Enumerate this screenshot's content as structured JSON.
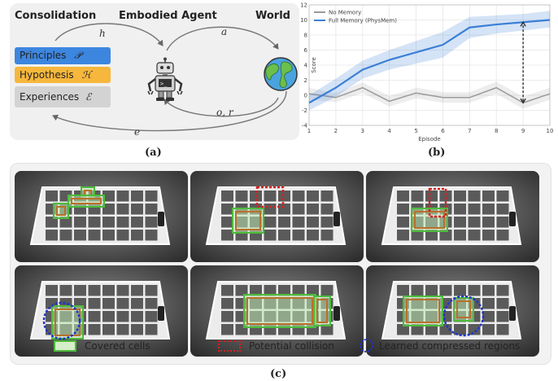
{
  "panel_a": {
    "headers": {
      "consolidation": "Consolidation",
      "agent": "Embodied Agent",
      "world": "World"
    },
    "memory": {
      "principles": "Principles",
      "principles_sym": "𝒫",
      "hypothesis": "Hypothesis",
      "hypothesis_sym": "ℋ",
      "experiences": "Experiences",
      "experiences_sym": "ℰ"
    },
    "edges": {
      "h": "h",
      "a": "a",
      "or": "o, r",
      "e": "e"
    },
    "colors": {
      "principles": "#3d86e0",
      "hypothesis": "#f6b73c",
      "experiences": "#d3d3d3"
    },
    "caption": "(a)"
  },
  "panel_b": {
    "caption": "(b)"
  },
  "panel_c": {
    "caption": "(c)",
    "legend": {
      "covered": "Covered cells",
      "collision": "Potential collision",
      "compressed": "Learned compressed regions"
    }
  },
  "chart_data": {
    "type": "line",
    "x": [
      1,
      2,
      3,
      4,
      5,
      6,
      7,
      8,
      9,
      10
    ],
    "series": [
      {
        "name": "No Memory",
        "color": "#9a9a9a",
        "values": [
          0.2,
          -0.3,
          1.0,
          -0.8,
          0.3,
          -0.3,
          -0.3,
          1.0,
          -1.0,
          0.2
        ],
        "band_low": [
          -0.6,
          -0.9,
          0.3,
          -1.5,
          -0.4,
          -1.0,
          -1.0,
          0.2,
          -1.8,
          -0.6
        ],
        "band_high": [
          1.0,
          0.3,
          1.7,
          -0.1,
          1.0,
          0.4,
          0.4,
          1.8,
          -0.2,
          1.0
        ]
      },
      {
        "name": "Full Memory (PhysMem)",
        "color": "#3a7fd6",
        "values": [
          -1.0,
          1.0,
          3.4,
          4.7,
          5.7,
          6.7,
          9.0,
          9.4,
          9.7,
          10.0
        ],
        "band_low": [
          -2.0,
          -0.2,
          2.2,
          3.4,
          4.2,
          5.0,
          7.6,
          8.2,
          8.6,
          9.0
        ],
        "band_high": [
          0.0,
          2.2,
          4.6,
          6.0,
          7.2,
          8.4,
          10.4,
          10.6,
          10.8,
          11.2
        ]
      }
    ],
    "xlabel": "Episode",
    "ylabel": "Score",
    "xlim": [
      1,
      10
    ],
    "ylim": [
      -4,
      12
    ],
    "xticks": [
      1,
      2,
      3,
      4,
      5,
      6,
      7,
      8,
      9,
      10
    ],
    "yticks": [
      -4,
      -2,
      0,
      2,
      4,
      6,
      8,
      10,
      12
    ],
    "legend_position": "top-left",
    "annotation": {
      "x": 9,
      "from": -1.0,
      "to": 9.7
    }
  }
}
